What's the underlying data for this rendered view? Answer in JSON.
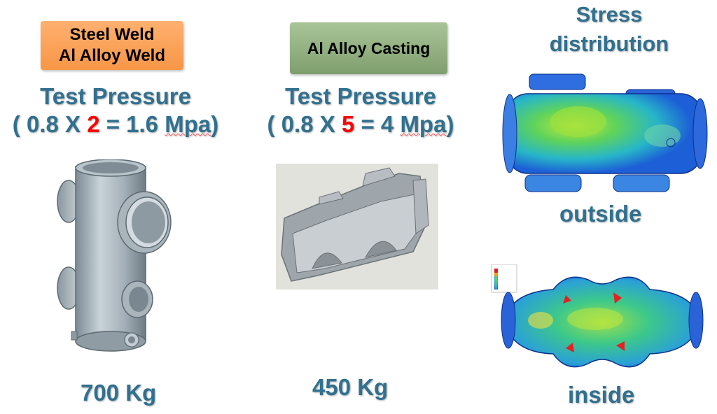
{
  "left": {
    "tag_line1": "Steel Weld",
    "tag_line2": "Al Alloy Weld",
    "pressure_title": "Test Pressure",
    "pressure_pre": "( 0.8 X ",
    "pressure_factor": "2",
    "pressure_mid": " = 1.6 ",
    "pressure_unit": "Mpa",
    "pressure_post": ")",
    "weight": "700 Kg"
  },
  "middle": {
    "tag": "Al Alloy Casting",
    "pressure_title": "Test Pressure",
    "pressure_pre": "( 0.8 X ",
    "pressure_factor": "5",
    "pressure_mid": " = 4 ",
    "pressure_unit": "Mpa",
    "pressure_post": ")",
    "weight": "450 Kg"
  },
  "right": {
    "title_line1": "Stress",
    "title_line2": "distribution",
    "caption_outside": "outside",
    "caption_inside": "inside"
  },
  "colors": {
    "heading": "#31708f",
    "factor": "#ff0000",
    "tag_orange": "#f79646",
    "tag_green": "#8faa7c"
  }
}
